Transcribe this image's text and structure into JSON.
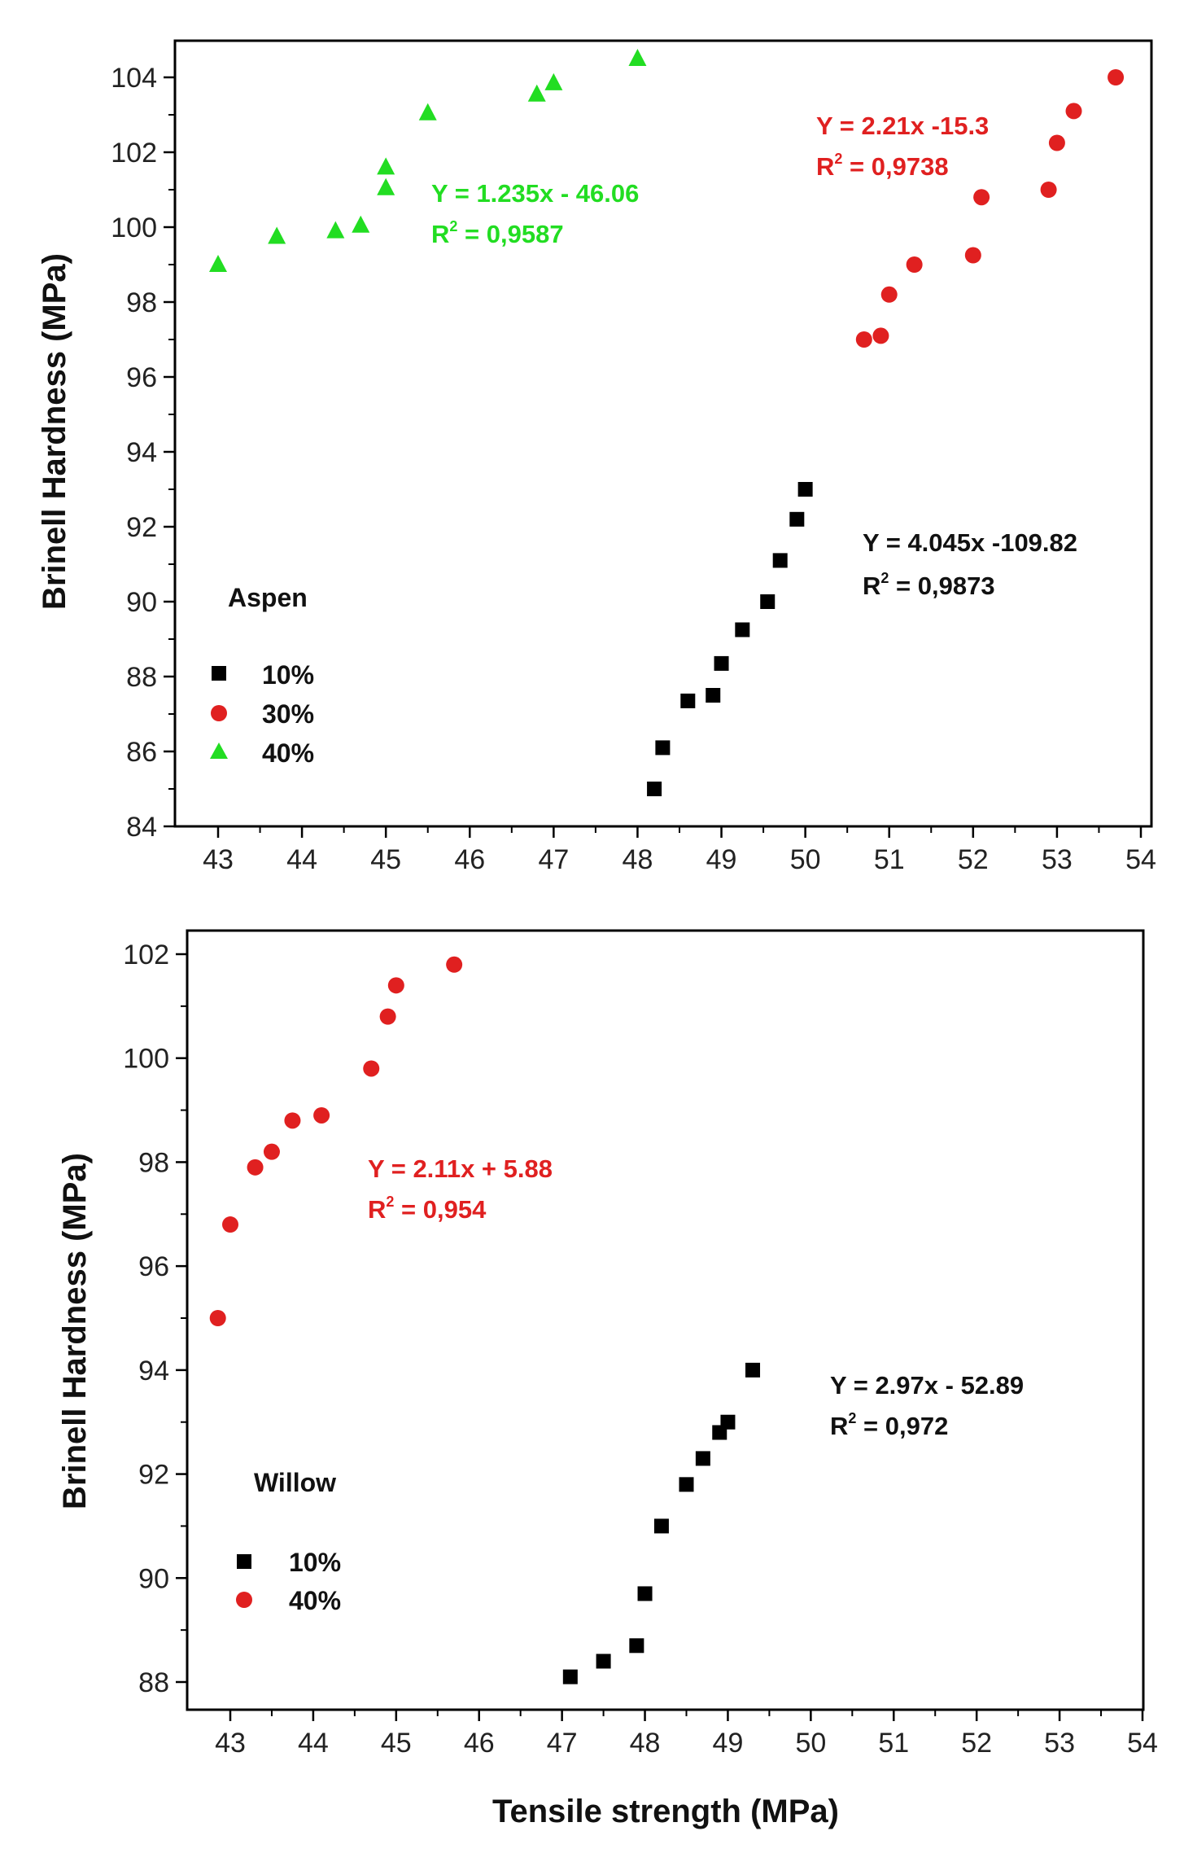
{
  "figure": {
    "xlabel": "Tensile strength (MPa)"
  },
  "chart_data": [
    {
      "type": "scatter",
      "id": "aspen",
      "legend_title": "Aspen",
      "ylabel": "Brinell Hardness (MPa)",
      "xlabel": "",
      "xlim": [
        42.5,
        54.0
      ],
      "ylim": [
        84,
        105
      ],
      "xticks": [
        43,
        44,
        45,
        46,
        47,
        48,
        49,
        50,
        51,
        52,
        53,
        54
      ],
      "yticks": [
        84,
        86,
        88,
        90,
        92,
        94,
        96,
        98,
        100,
        102,
        104
      ],
      "legend_position": "bottom-left",
      "series": [
        {
          "name": "10%",
          "marker": "square",
          "color": "#000000",
          "x": [
            48.2,
            48.3,
            48.6,
            48.9,
            49.0,
            49.25,
            49.55,
            49.7,
            49.9,
            50.0
          ],
          "y": [
            85.0,
            86.1,
            87.35,
            87.5,
            88.35,
            89.25,
            90.0,
            91.1,
            92.2,
            93.0
          ],
          "equation": "Y = 4.045x -109.82",
          "r2": "0,9873"
        },
        {
          "name": "30%",
          "marker": "circle",
          "color": "#e02020",
          "x": [
            50.7,
            50.9,
            51.0,
            51.3,
            52.0,
            52.1,
            52.9,
            53.0,
            53.2,
            53.7
          ],
          "y": [
            97.0,
            97.1,
            98.2,
            99.0,
            99.25,
            100.8,
            101.0,
            102.25,
            103.1,
            104.0
          ],
          "equation": "Y = 2.21x -15.3",
          "r2": "0,9738"
        },
        {
          "name": "40%",
          "marker": "triangle",
          "color": "#22dd22",
          "x": [
            43.0,
            43.7,
            44.4,
            44.7,
            45.0,
            45.0,
            45.5,
            46.8,
            47.0,
            48.0
          ],
          "y": [
            99.0,
            99.75,
            99.9,
            100.05,
            101.05,
            101.6,
            103.05,
            103.55,
            103.85,
            104.5
          ],
          "equation": "Y = 1.235x - 46.06",
          "r2": "0,9587"
        }
      ]
    },
    {
      "type": "scatter",
      "id": "willow",
      "legend_title": "Willow",
      "ylabel": "Brinell Hardness (MPa)",
      "xlabel": "Tensile strength (MPa)",
      "xlim": [
        42.5,
        54.0
      ],
      "ylim": [
        87.5,
        102.5
      ],
      "xticks": [
        43,
        44,
        45,
        46,
        47,
        48,
        49,
        50,
        51,
        52,
        53,
        54
      ],
      "yticks": [
        88,
        90,
        92,
        94,
        96,
        98,
        100,
        102
      ],
      "legend_position": "bottom-left",
      "series": [
        {
          "name": "10%",
          "marker": "square",
          "color": "#000000",
          "x": [
            47.1,
            47.5,
            47.9,
            48.0,
            48.2,
            48.5,
            48.7,
            48.9,
            49.0,
            49.3
          ],
          "y": [
            88.1,
            88.4,
            88.7,
            89.7,
            91.0,
            91.8,
            92.3,
            92.8,
            93.0,
            94.0
          ],
          "equation": "Y = 2.97x - 52.89",
          "r2": "0,972"
        },
        {
          "name": "40%",
          "marker": "circle",
          "color": "#e02020",
          "x": [
            42.85,
            43.0,
            43.3,
            43.5,
            43.75,
            44.1,
            44.7,
            44.9,
            45.0,
            45.7
          ],
          "y": [
            95.0,
            96.8,
            97.9,
            98.2,
            98.8,
            98.9,
            99.8,
            100.8,
            101.4,
            101.8
          ],
          "equation": "Y = 2.11x + 5.88",
          "r2": "0,954"
        }
      ]
    }
  ]
}
